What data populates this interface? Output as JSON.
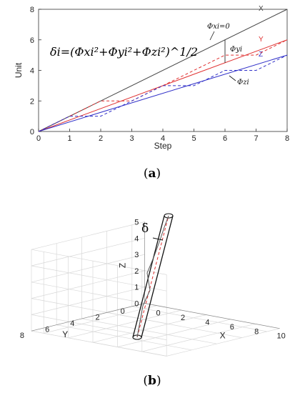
{
  "chart_data": [
    {
      "type": "line",
      "panel_label": "a",
      "xlabel": "Step",
      "ylabel": "Unit",
      "xlim": [
        0,
        8
      ],
      "ylim": [
        0,
        8
      ],
      "x_ticks": [
        "0",
        "1",
        "2",
        "3",
        "4",
        "5",
        "6",
        "7",
        "8"
      ],
      "y_ticks": [
        "0",
        "2",
        "4",
        "6",
        "8"
      ],
      "grid": false,
      "series": [
        {
          "name": "X",
          "style": "solid",
          "color": "#444444",
          "x": [
            0,
            8
          ],
          "y": [
            0,
            8
          ]
        },
        {
          "name": "Y",
          "style": "solid",
          "color": "#e03030",
          "x": [
            0,
            8
          ],
          "y": [
            0,
            6
          ]
        },
        {
          "name": "Z",
          "style": "solid",
          "color": "#3030c8",
          "x": [
            0,
            8
          ],
          "y": [
            0,
            5
          ]
        },
        {
          "name": "",
          "style": "dashed",
          "color": "#e03030",
          "x": [
            0,
            1,
            2,
            3,
            4,
            5,
            6,
            7,
            8
          ],
          "y": [
            0,
            1,
            2,
            2,
            3,
            4,
            5,
            5,
            6
          ]
        },
        {
          "name": "",
          "style": "dashed",
          "color": "#3030c8",
          "x": [
            0,
            1,
            2,
            3,
            4,
            5,
            6,
            7,
            8
          ],
          "y": [
            0,
            1,
            1,
            2,
            3,
            3,
            4,
            4,
            5
          ]
        }
      ],
      "formula": "δi=(Φxi²+Φyi²+Φzi²)^1/2",
      "annotations": {
        "phix": "Φxi=0",
        "phiy": "Φyi",
        "phiz": "Φzi"
      }
    },
    {
      "type": "3d-line",
      "panel_label": "b",
      "xlabel": "X",
      "ylabel": "Y",
      "zlabel": "Z",
      "x_ticks": [
        "0",
        "2",
        "4",
        "6",
        "8",
        "10"
      ],
      "y_ticks": [
        "0",
        "2",
        "4",
        "6",
        "8"
      ],
      "z_ticks": [
        "0",
        "1",
        "2",
        "3",
        "4",
        "5"
      ],
      "xlim": [
        0,
        10
      ],
      "ylim": [
        0,
        8
      ],
      "zlim": [
        0,
        5
      ],
      "grid": true,
      "delta_label": "δ",
      "series": [
        {
          "name": "",
          "style": "dashed",
          "color": "#e03030",
          "x": [
            0,
            8
          ],
          "y": [
            0,
            6
          ],
          "z": [
            0,
            5
          ]
        },
        {
          "name": "",
          "style": "solid",
          "color": "#444444",
          "x": [
            0,
            1,
            2,
            3,
            4,
            5,
            6,
            7,
            8
          ],
          "y": [
            0,
            1,
            2,
            2,
            3,
            4,
            5,
            5,
            6
          ],
          "z": [
            0,
            0.6,
            1.2,
            1.9,
            2.5,
            3.1,
            3.8,
            4.4,
            5
          ]
        }
      ]
    }
  ]
}
